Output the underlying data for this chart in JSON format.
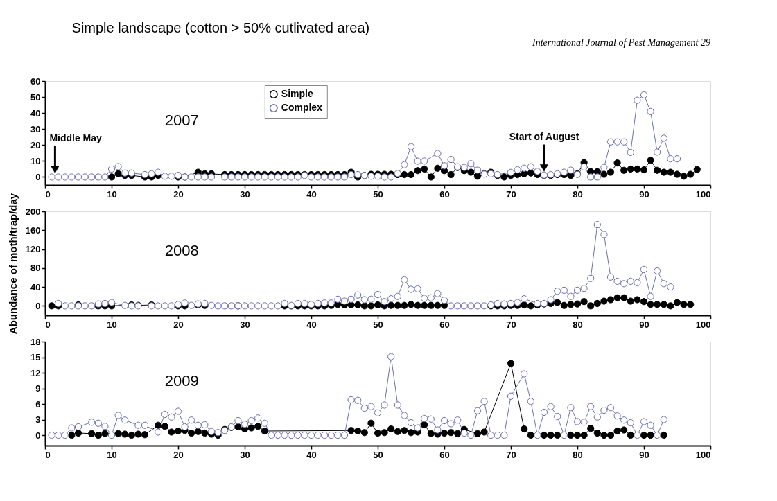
{
  "chart_data": [
    {
      "type": "line",
      "title": "Simple landscape (cotton > 50% cutlivated area)",
      "subtitle": "2007",
      "marker": "circle",
      "legend": "top",
      "annotations": [
        "International Journal of Pest Management   29",
        {
          "text": "Middle May",
          "x": 1.5,
          "y": 2
        },
        {
          "text": "Start of August",
          "x": 75,
          "y": 3
        }
      ],
      "xlim": [
        0,
        100
      ],
      "xticks": [
        0,
        10,
        20,
        30,
        40,
        50,
        60,
        70,
        80,
        90,
        100
      ],
      "ylim": [
        -5,
        60
      ],
      "yticks": [
        0,
        10,
        20,
        30,
        40,
        50,
        60
      ],
      "series": [
        {
          "name": "Simple",
          "color": "#000000",
          "x": [
            10,
            11,
            12,
            13,
            15,
            16,
            17,
            20,
            21,
            23,
            24,
            25,
            27,
            28,
            29,
            30,
            31,
            32,
            33,
            34,
            35,
            36,
            37,
            38,
            39,
            40,
            41,
            42,
            43,
            44,
            45,
            46,
            47,
            48,
            49,
            50,
            51,
            52,
            53,
            54,
            55,
            56,
            57,
            58,
            59,
            60,
            61,
            62,
            63,
            64,
            65,
            66,
            67,
            68,
            69,
            70,
            71,
            72,
            73,
            74,
            75,
            76,
            77,
            78,
            79,
            80,
            81,
            82,
            83,
            84,
            85,
            86,
            87,
            88,
            89,
            90,
            91,
            92,
            93,
            94,
            95,
            96,
            97,
            98
          ],
          "values": [
            0,
            2,
            1,
            1,
            0,
            0,
            1,
            0,
            0,
            3,
            2,
            2,
            1.5,
            1.5,
            1.5,
            1.5,
            1.5,
            1.5,
            1.5,
            1.5,
            1.5,
            1.5,
            1.5,
            1.5,
            1.5,
            1.5,
            1.5,
            1.5,
            1.5,
            1.5,
            1.5,
            3,
            0,
            1,
            1.7,
            1.7,
            1.7,
            1.7,
            1.5,
            1.5,
            1.5,
            4,
            5,
            0,
            5.5,
            4,
            1.5,
            6,
            4,
            3,
            0.5,
            2,
            3,
            1,
            0,
            1,
            1.5,
            2,
            2.5,
            1.5,
            1,
            1,
            1.5,
            1.5,
            1,
            2,
            9,
            3.3,
            3.3,
            1.7,
            3,
            8.8,
            4.2,
            5,
            5,
            4.5,
            10.5,
            4.2,
            3,
            3,
            1.7,
            0.5,
            1.7,
            4.7
          ]
        },
        {
          "name": "Complex",
          "color": "#6a6fb5",
          "x": [
            1,
            2,
            3,
            4,
            5,
            6,
            7,
            8,
            9,
            10,
            11,
            12,
            13,
            15,
            16,
            17,
            18,
            19,
            20,
            21,
            22,
            23,
            24,
            25,
            27,
            28,
            29,
            30,
            31,
            32,
            33,
            34,
            35,
            36,
            37,
            38,
            39,
            40,
            41,
            42,
            43,
            44,
            45,
            46,
            47,
            48,
            49,
            50,
            51,
            52,
            53,
            54,
            55,
            56,
            57,
            59,
            60,
            61,
            62,
            63,
            64,
            65,
            66,
            67,
            68,
            70,
            71,
            72,
            73,
            74,
            75,
            76,
            77,
            78,
            79,
            80,
            81,
            82,
            83,
            84,
            85,
            86,
            87,
            88,
            89,
            90,
            91,
            92,
            93,
            94,
            95
          ],
          "values": [
            0,
            0,
            0,
            0,
            0,
            0,
            0,
            0,
            0,
            5,
            6.5,
            2.5,
            2.5,
            1.5,
            2,
            3,
            0.5,
            0.5,
            1,
            0,
            0,
            0,
            0,
            0,
            0,
            0,
            0,
            0,
            0,
            0,
            0,
            0,
            0,
            0,
            0,
            0,
            1,
            0,
            0,
            0,
            0,
            0,
            0,
            1.5,
            1.5,
            1,
            0.5,
            0.5,
            0,
            0,
            2.2,
            7.7,
            19,
            9.9,
            10,
            14.7,
            7,
            11,
            6.4,
            6,
            8.3,
            4.3,
            1.8,
            2,
            1.5,
            2.9,
            4.5,
            5.5,
            6.4,
            3.5,
            1.2,
            1.5,
            2,
            3,
            4.3,
            1.6,
            6.3,
            0,
            0,
            6,
            22,
            22,
            22,
            15.4,
            48,
            51.4,
            41,
            15.6,
            24.3,
            11.4,
            11.4
          ]
        }
      ]
    },
    {
      "type": "line",
      "subtitle": "2008",
      "ylabel": "Abundance of moth/trap/day",
      "marker": "circle",
      "xlim": [
        0,
        100
      ],
      "xticks": [
        0,
        10,
        20,
        30,
        40,
        50,
        60,
        70,
        80,
        90,
        100
      ],
      "ylim": [
        -20,
        200
      ],
      "yticks": [
        0,
        40,
        80,
        120,
        160,
        200
      ],
      "series": [
        {
          "color": "#000000",
          "x": [
            1,
            2,
            5,
            8,
            9,
            10,
            13,
            14,
            16,
            20,
            21,
            23,
            24,
            29,
            36,
            37,
            38,
            39,
            40,
            41,
            42,
            43,
            44,
            45,
            46,
            47,
            48,
            49,
            50,
            51,
            52,
            53,
            54,
            55,
            56,
            57,
            58,
            59,
            60,
            67,
            68,
            69,
            70,
            71,
            72,
            73,
            74,
            75,
            76,
            77,
            78,
            79,
            80,
            81,
            82,
            83,
            84,
            85,
            86,
            87,
            88,
            89,
            90,
            91,
            92,
            93,
            94,
            95,
            96,
            97
          ],
          "values": [
            0,
            0,
            2,
            0,
            0,
            0,
            2,
            1,
            2,
            0,
            0,
            2,
            1,
            0,
            0,
            0,
            0,
            0,
            0,
            0,
            0,
            1,
            3,
            2,
            2,
            2,
            0,
            0,
            2,
            0,
            1,
            1,
            1,
            3,
            1,
            1,
            1,
            1,
            1,
            0,
            0,
            0,
            1,
            1,
            2,
            0,
            2,
            4,
            5,
            7,
            1,
            3,
            4,
            9,
            0,
            5,
            10,
            13,
            17,
            17,
            10,
            13,
            9,
            3,
            3,
            3,
            0,
            7,
            3,
            3
          ]
        },
        {
          "color": "#6a6fb5",
          "x": [
            2,
            3,
            4,
            5,
            6,
            7,
            8,
            9,
            10,
            12,
            13,
            14,
            16,
            17,
            18,
            19,
            20,
            21,
            22,
            23,
            24,
            25,
            26,
            27,
            28,
            29,
            30,
            31,
            32,
            33,
            34,
            35,
            36,
            37,
            38,
            39,
            40,
            41,
            42,
            43,
            44,
            45,
            46,
            47,
            48,
            49,
            50,
            51,
            52,
            53,
            54,
            55,
            56,
            57,
            58,
            59,
            60,
            61,
            62,
            63,
            64,
            65,
            66,
            67,
            68,
            69,
            70,
            71,
            72,
            74,
            75,
            76,
            77,
            78,
            79,
            80,
            81,
            82,
            83,
            84,
            85,
            86,
            87,
            88,
            89,
            90,
            91,
            92,
            93,
            94
          ],
          "values": [
            5,
            0,
            0,
            0,
            0,
            0,
            4,
            5,
            7,
            1,
            0,
            0,
            0,
            0,
            0,
            0,
            3,
            6,
            1,
            4,
            5,
            1,
            0,
            0,
            0,
            0,
            0,
            0,
            0,
            0,
            0,
            0,
            5,
            1,
            5,
            5,
            3,
            5,
            6,
            6,
            14,
            10,
            14,
            23,
            13,
            14,
            24,
            9,
            15,
            20,
            55,
            35,
            36,
            16,
            17,
            26,
            12,
            0,
            0,
            0,
            0,
            0,
            0,
            2,
            5,
            4,
            5,
            7,
            15,
            5,
            5,
            13,
            31,
            33,
            20,
            33,
            37,
            58,
            172,
            151,
            61,
            52,
            47,
            52,
            49,
            77,
            20,
            74,
            47,
            40
          ]
        }
      ]
    },
    {
      "type": "line",
      "subtitle": "2009",
      "marker": "circle",
      "xlim": [
        0,
        100
      ],
      "xticks": [
        0,
        10,
        20,
        30,
        40,
        50,
        60,
        70,
        80,
        90,
        100
      ],
      "ylim": [
        -2,
        18
      ],
      "yticks": [
        0,
        3,
        6,
        9,
        12,
        15,
        18
      ],
      "series": [
        {
          "color": "#000000",
          "x": [
            4,
            5,
            7,
            8,
            9,
            11,
            12,
            13,
            14,
            15,
            17,
            18,
            19,
            20,
            21,
            22,
            23,
            24,
            25,
            26,
            27,
            28,
            29,
            30,
            31,
            32,
            33,
            46,
            47,
            48,
            49,
            50,
            51,
            52,
            53,
            54,
            55,
            56,
            57,
            58,
            59,
            60,
            61,
            62,
            63,
            65,
            66,
            70,
            72,
            73,
            75,
            76,
            77,
            79,
            80,
            81,
            82,
            83,
            84,
            85,
            86,
            87,
            88,
            90,
            91,
            93
          ],
          "values": [
            0,
            0.4,
            0.3,
            0,
            0.3,
            0.3,
            0.2,
            0,
            0.2,
            0.1,
            1.9,
            1.7,
            0.6,
            0.8,
            0.9,
            0.4,
            0.7,
            0.4,
            0.2,
            0,
            1.1,
            1.5,
            1.6,
            1.2,
            1.4,
            1.7,
            0.8,
            0.9,
            0.8,
            0.5,
            2.3,
            0.4,
            0.5,
            1.2,
            0.7,
            0.9,
            0.5,
            0.6,
            2,
            0.3,
            0.2,
            0.4,
            0.5,
            0.3,
            1.1,
            0.3,
            0.6,
            13.8,
            1.2,
            0,
            0,
            0,
            0,
            0,
            0,
            0,
            1.3,
            0.4,
            0,
            0,
            0.8,
            1,
            0,
            0,
            0,
            0
          ]
        },
        {
          "color": "#6a6fb5",
          "x": [
            1,
            2,
            3,
            4,
            5,
            7,
            8,
            9,
            10,
            11,
            12,
            14,
            15,
            17,
            18,
            19,
            20,
            21,
            22,
            23,
            24,
            25,
            26,
            27,
            28,
            29,
            30,
            31,
            32,
            33,
            34,
            35,
            36,
            37,
            38,
            39,
            40,
            41,
            42,
            43,
            44,
            45,
            46,
            47,
            48,
            49,
            50,
            51,
            52,
            53,
            54,
            55,
            56,
            57,
            58,
            59,
            60,
            61,
            62,
            63,
            64,
            65,
            66,
            67,
            68,
            69,
            70,
            72,
            73,
            74,
            75,
            76,
            77,
            78,
            79,
            80,
            81,
            82,
            83,
            84,
            85,
            86,
            87,
            88,
            89,
            90,
            91,
            92,
            93
          ],
          "values": [
            0,
            0,
            0,
            1.4,
            1.6,
            2.5,
            2.3,
            1.7,
            0,
            3.8,
            2.9,
            1.9,
            1.9,
            0.6,
            4,
            3.5,
            4.6,
            1.6,
            2.9,
            1.9,
            2,
            0.7,
            0.5,
            0.9,
            1.6,
            2.8,
            2.1,
            2.8,
            3.3,
            2.3,
            0,
            0,
            0,
            0,
            0,
            0,
            0,
            0,
            0,
            0,
            0,
            0,
            6.8,
            6.7,
            5.2,
            5.5,
            4.3,
            5.8,
            15.1,
            5.8,
            3.8,
            2.4,
            1.4,
            3.2,
            3.1,
            1,
            2.8,
            2.2,
            2.9,
            0.4,
            0,
            4.7,
            6.5,
            0,
            0,
            0,
            7.5,
            11.8,
            6.5,
            0,
            4.4,
            5.5,
            3.6,
            0,
            5.3,
            2.6,
            2.5,
            5.5,
            3.5,
            4.8,
            5.3,
            3.7,
            2.9,
            2.4,
            0,
            2.6,
            1.9,
            0,
            3
          ]
        }
      ]
    }
  ]
}
